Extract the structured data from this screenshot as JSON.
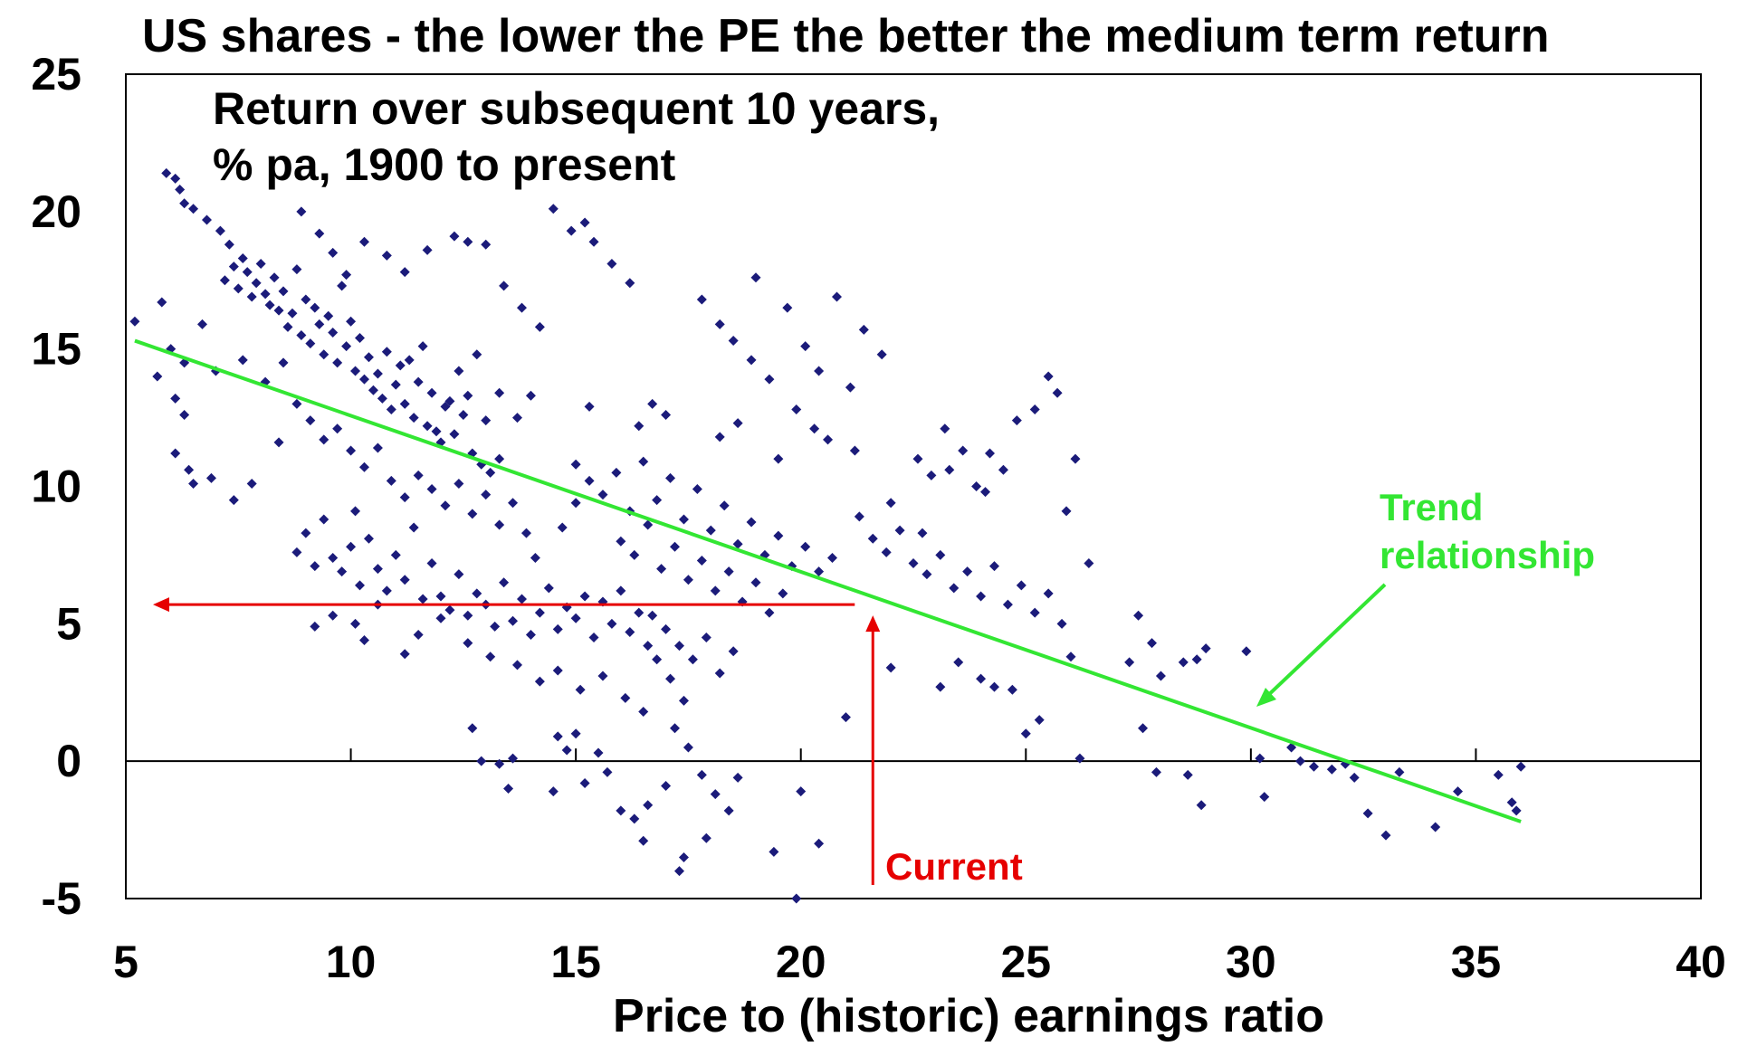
{
  "chart_data": {
    "type": "scatter",
    "title": "US shares  - the lower the PE the better the medium term return",
    "subtitle_lines": [
      "Return over subsequent 10 years,",
      "% pa, 1900 to present"
    ],
    "xlabel": "Price to (historic) earnings ratio",
    "ylabel": "",
    "xlim": [
      5,
      40
    ],
    "ylim": [
      -5,
      25
    ],
    "x_ticks": [
      "5",
      "10",
      "15",
      "20",
      "25",
      "30",
      "35",
      "40"
    ],
    "y_ticks": [
      "25",
      "20",
      "15",
      "10",
      "5",
      "0",
      "-5"
    ],
    "grid": false,
    "colors": {
      "points": "#1b1b7a",
      "trend": "#33e633",
      "current": "#e60000",
      "zero_line": "#000000"
    },
    "trend_line": {
      "label_lines": [
        "Trend",
        "relationship"
      ],
      "x": [
        5.2,
        36
      ],
      "y": [
        15.3,
        -2.2
      ]
    },
    "current": {
      "label": "Current",
      "pe": 21.6,
      "implied_return": 5.7
    },
    "points": [
      [
        5.2,
        16.0
      ],
      [
        5.8,
        16.7
      ],
      [
        5.9,
        21.4
      ],
      [
        6.1,
        21.2
      ],
      [
        6.2,
        20.8
      ],
      [
        6.3,
        20.3
      ],
      [
        6.5,
        20.1
      ],
      [
        6.8,
        19.7
      ],
      [
        7.1,
        19.3
      ],
      [
        7.3,
        18.8
      ],
      [
        6.0,
        15.0
      ],
      [
        6.3,
        14.5
      ],
      [
        6.1,
        11.2
      ],
      [
        6.4,
        10.6
      ],
      [
        6.5,
        10.1
      ],
      [
        6.3,
        12.6
      ],
      [
        6.9,
        10.3
      ],
      [
        7.4,
        9.5
      ],
      [
        7.8,
        10.1
      ],
      [
        6.7,
        15.9
      ],
      [
        7.2,
        17.5
      ],
      [
        7.4,
        18.0
      ],
      [
        7.5,
        17.2
      ],
      [
        7.6,
        18.3
      ],
      [
        7.7,
        17.8
      ],
      [
        7.8,
        16.9
      ],
      [
        7.9,
        17.4
      ],
      [
        8.0,
        18.1
      ],
      [
        8.1,
        17.0
      ],
      [
        8.2,
        16.6
      ],
      [
        8.3,
        17.6
      ],
      [
        8.4,
        16.4
      ],
      [
        8.5,
        17.1
      ],
      [
        8.6,
        15.8
      ],
      [
        8.7,
        16.3
      ],
      [
        8.8,
        17.9
      ],
      [
        8.9,
        15.5
      ],
      [
        9.0,
        16.8
      ],
      [
        9.1,
        15.2
      ],
      [
        9.2,
        16.5
      ],
      [
        9.3,
        15.9
      ],
      [
        9.4,
        14.8
      ],
      [
        9.5,
        16.2
      ],
      [
        9.6,
        15.6
      ],
      [
        9.7,
        14.5
      ],
      [
        9.8,
        17.3
      ],
      [
        9.9,
        15.1
      ],
      [
        10.0,
        16.0
      ],
      [
        10.1,
        14.2
      ],
      [
        10.2,
        15.4
      ],
      [
        10.3,
        13.9
      ],
      [
        10.4,
        14.7
      ],
      [
        10.5,
        13.5
      ],
      [
        10.6,
        14.1
      ],
      [
        10.7,
        13.2
      ],
      [
        10.8,
        14.9
      ],
      [
        10.9,
        12.8
      ],
      [
        11.0,
        13.7
      ],
      [
        11.1,
        14.4
      ],
      [
        11.2,
        13.0
      ],
      [
        11.3,
        14.6
      ],
      [
        11.4,
        12.5
      ],
      [
        11.5,
        13.8
      ],
      [
        11.6,
        15.1
      ],
      [
        11.7,
        12.2
      ],
      [
        11.8,
        13.4
      ],
      [
        11.9,
        12.0
      ],
      [
        12.0,
        11.6
      ],
      [
        12.1,
        12.9
      ],
      [
        12.2,
        13.1
      ],
      [
        12.3,
        11.9
      ],
      [
        12.4,
        14.2
      ],
      [
        12.5,
        12.6
      ],
      [
        12.6,
        13.3
      ],
      [
        12.7,
        11.2
      ],
      [
        12.8,
        14.8
      ],
      [
        12.9,
        10.8
      ],
      [
        13.0,
        12.4
      ],
      [
        13.1,
        10.5
      ],
      [
        13.3,
        11.0
      ],
      [
        8.9,
        20.0
      ],
      [
        9.3,
        19.2
      ],
      [
        9.6,
        18.5
      ],
      [
        9.9,
        17.7
      ],
      [
        10.3,
        18.9
      ],
      [
        10.8,
        18.4
      ],
      [
        11.2,
        17.8
      ],
      [
        11.7,
        18.6
      ],
      [
        12.3,
        19.1
      ],
      [
        12.6,
        18.9
      ],
      [
        13.0,
        18.8
      ],
      [
        13.4,
        17.3
      ],
      [
        13.8,
        16.5
      ],
      [
        14.2,
        15.8
      ],
      [
        14.5,
        20.1
      ],
      [
        14.9,
        19.3
      ],
      [
        15.2,
        19.6
      ],
      [
        15.4,
        18.9
      ],
      [
        15.8,
        18.1
      ],
      [
        16.2,
        17.4
      ],
      [
        8.1,
        13.8
      ],
      [
        8.5,
        14.5
      ],
      [
        8.8,
        13.0
      ],
      [
        9.1,
        12.4
      ],
      [
        9.4,
        11.7
      ],
      [
        9.7,
        12.1
      ],
      [
        10.0,
        11.3
      ],
      [
        10.3,
        10.7
      ],
      [
        10.6,
        11.4
      ],
      [
        10.9,
        10.2
      ],
      [
        11.2,
        9.6
      ],
      [
        11.5,
        10.4
      ],
      [
        11.8,
        9.9
      ],
      [
        12.1,
        9.3
      ],
      [
        12.4,
        10.1
      ],
      [
        12.7,
        9.0
      ],
      [
        13.0,
        9.7
      ],
      [
        13.3,
        8.6
      ],
      [
        13.6,
        9.4
      ],
      [
        13.9,
        8.3
      ],
      [
        8.8,
        7.6
      ],
      [
        9.0,
        8.3
      ],
      [
        9.2,
        7.1
      ],
      [
        9.4,
        8.8
      ],
      [
        9.6,
        7.4
      ],
      [
        9.8,
        6.9
      ],
      [
        10.0,
        7.8
      ],
      [
        10.2,
        6.4
      ],
      [
        10.4,
        8.1
      ],
      [
        10.6,
        7.0
      ],
      [
        10.8,
        6.2
      ],
      [
        11.0,
        7.5
      ],
      [
        11.2,
        6.6
      ],
      [
        11.4,
        8.5
      ],
      [
        11.6,
        5.9
      ],
      [
        11.8,
        7.2
      ],
      [
        12.0,
        6.0
      ],
      [
        12.2,
        5.5
      ],
      [
        12.4,
        6.8
      ],
      [
        12.6,
        5.3
      ],
      [
        12.8,
        6.1
      ],
      [
        13.0,
        5.7
      ],
      [
        13.2,
        4.9
      ],
      [
        13.4,
        6.5
      ],
      [
        13.6,
        5.1
      ],
      [
        13.8,
        5.9
      ],
      [
        14.0,
        4.6
      ],
      [
        14.2,
        5.4
      ],
      [
        14.4,
        6.3
      ],
      [
        14.6,
        4.8
      ],
      [
        14.8,
        5.6
      ],
      [
        15.0,
        5.2
      ],
      [
        15.2,
        6.0
      ],
      [
        15.4,
        4.5
      ],
      [
        15.6,
        5.8
      ],
      [
        15.8,
        5.0
      ],
      [
        16.0,
        6.2
      ],
      [
        16.2,
        4.7
      ],
      [
        16.4,
        5.4
      ],
      [
        16.6,
        4.2
      ],
      [
        9.2,
        4.9
      ],
      [
        9.6,
        5.3
      ],
      [
        10.1,
        5.0
      ],
      [
        10.3,
        4.4
      ],
      [
        10.6,
        5.7
      ],
      [
        11.2,
        3.9
      ],
      [
        11.5,
        4.6
      ],
      [
        12.0,
        5.2
      ],
      [
        12.6,
        4.3
      ],
      [
        13.1,
        3.8
      ],
      [
        13.7,
        3.5
      ],
      [
        14.2,
        2.9
      ],
      [
        14.6,
        3.3
      ],
      [
        15.1,
        2.6
      ],
      [
        15.6,
        3.1
      ],
      [
        16.1,
        2.3
      ],
      [
        16.5,
        1.8
      ],
      [
        16.8,
        3.7
      ],
      [
        17.1,
        3.0
      ],
      [
        17.4,
        2.2
      ],
      [
        15.0,
        10.8
      ],
      [
        15.3,
        10.2
      ],
      [
        15.6,
        9.7
      ],
      [
        15.9,
        10.5
      ],
      [
        16.2,
        9.1
      ],
      [
        16.5,
        10.9
      ],
      [
        16.8,
        9.5
      ],
      [
        17.1,
        10.3
      ],
      [
        17.4,
        8.8
      ],
      [
        17.7,
        9.9
      ],
      [
        18.0,
        8.4
      ],
      [
        18.3,
        9.3
      ],
      [
        18.6,
        7.9
      ],
      [
        18.9,
        8.7
      ],
      [
        19.2,
        7.5
      ],
      [
        19.5,
        8.2
      ],
      [
        19.8,
        7.1
      ],
      [
        20.1,
        7.8
      ],
      [
        20.4,
        6.9
      ],
      [
        20.7,
        7.4
      ],
      [
        16.0,
        8.0
      ],
      [
        16.3,
        7.5
      ],
      [
        16.6,
        8.6
      ],
      [
        16.9,
        7.0
      ],
      [
        17.2,
        7.8
      ],
      [
        17.5,
        6.6
      ],
      [
        17.8,
        7.3
      ],
      [
        18.1,
        6.2
      ],
      [
        18.4,
        6.9
      ],
      [
        18.7,
        5.8
      ],
      [
        19.0,
        6.5
      ],
      [
        19.3,
        5.4
      ],
      [
        19.6,
        6.1
      ],
      [
        17.3,
        4.2
      ],
      [
        17.6,
        3.7
      ],
      [
        17.9,
        4.5
      ],
      [
        18.2,
        3.2
      ],
      [
        17.0,
        4.8
      ],
      [
        16.7,
        5.3
      ],
      [
        18.5,
        4.0
      ],
      [
        17.2,
        1.2
      ],
      [
        17.5,
        0.5
      ],
      [
        17.8,
        -0.5
      ],
      [
        18.1,
        -1.2
      ],
      [
        18.4,
        -1.8
      ],
      [
        17.0,
        -0.9
      ],
      [
        16.6,
        -1.6
      ],
      [
        16.3,
        -2.1
      ],
      [
        16.0,
        -1.8
      ],
      [
        15.7,
        -0.4
      ],
      [
        15.5,
        0.3
      ],
      [
        15.2,
        -0.8
      ],
      [
        15.0,
        1.0
      ],
      [
        14.8,
        0.4
      ],
      [
        18.6,
        -0.6
      ],
      [
        17.4,
        -3.5
      ],
      [
        17.9,
        -2.8
      ],
      [
        17.3,
        -4.0
      ],
      [
        16.5,
        -2.9
      ],
      [
        19.9,
        -5.0
      ],
      [
        20.0,
        -1.1
      ],
      [
        20.4,
        -3.0
      ],
      [
        19.4,
        -3.3
      ],
      [
        14.5,
        -1.1
      ],
      [
        13.5,
        -1.0
      ],
      [
        13.3,
        -0.1
      ],
      [
        12.9,
        0.0
      ],
      [
        13.6,
        0.1
      ],
      [
        14.6,
        0.9
      ],
      [
        12.7,
        1.2
      ],
      [
        21.0,
        1.6
      ],
      [
        22.0,
        3.4
      ],
      [
        23.1,
        2.7
      ],
      [
        23.5,
        3.6
      ],
      [
        24.0,
        3.0
      ],
      [
        24.3,
        2.7
      ],
      [
        24.7,
        2.6
      ],
      [
        25.0,
        1.0
      ],
      [
        25.3,
        1.5
      ],
      [
        26.2,
        0.1
      ],
      [
        17.8,
        16.8
      ],
      [
        18.2,
        15.9
      ],
      [
        18.5,
        15.3
      ],
      [
        18.9,
        14.6
      ],
      [
        19.3,
        13.9
      ],
      [
        19.7,
        16.5
      ],
      [
        20.1,
        15.1
      ],
      [
        20.4,
        14.2
      ],
      [
        20.8,
        16.9
      ],
      [
        21.1,
        13.6
      ],
      [
        21.4,
        15.7
      ],
      [
        21.8,
        14.8
      ],
      [
        19.0,
        17.6
      ],
      [
        18.6,
        12.3
      ],
      [
        19.9,
        12.8
      ],
      [
        20.6,
        11.7
      ],
      [
        21.2,
        11.3
      ],
      [
        20.3,
        12.1
      ],
      [
        19.5,
        11.0
      ],
      [
        18.2,
        11.8
      ],
      [
        21.3,
        8.9
      ],
      [
        21.6,
        8.1
      ],
      [
        21.9,
        7.6
      ],
      [
        22.2,
        8.4
      ],
      [
        22.5,
        7.2
      ],
      [
        22.8,
        6.8
      ],
      [
        23.1,
        7.5
      ],
      [
        23.4,
        6.3
      ],
      [
        23.7,
        6.9
      ],
      [
        24.0,
        6.0
      ],
      [
        24.3,
        7.1
      ],
      [
        24.6,
        5.7
      ],
      [
        24.9,
        6.4
      ],
      [
        25.2,
        5.4
      ],
      [
        25.5,
        6.1
      ],
      [
        22.0,
        9.4
      ],
      [
        22.7,
        8.3
      ],
      [
        23.3,
        10.6
      ],
      [
        23.6,
        11.3
      ],
      [
        24.1,
        9.8
      ],
      [
        22.6,
        11.0
      ],
      [
        22.9,
        10.4
      ],
      [
        23.2,
        12.1
      ],
      [
        23.9,
        10.0
      ],
      [
        24.2,
        11.2
      ],
      [
        24.5,
        10.6
      ],
      [
        25.2,
        12.8
      ],
      [
        25.7,
        13.4
      ],
      [
        25.5,
        14.0
      ],
      [
        26.1,
        11.0
      ],
      [
        24.8,
        12.4
      ],
      [
        25.9,
        9.1
      ],
      [
        26.4,
        7.2
      ],
      [
        26.0,
        3.8
      ],
      [
        25.8,
        5.0
      ],
      [
        27.5,
        5.3
      ],
      [
        27.8,
        4.3
      ],
      [
        27.3,
        3.6
      ],
      [
        28.0,
        3.1
      ],
      [
        27.6,
        1.2
      ],
      [
        28.5,
        3.6
      ],
      [
        29.0,
        4.1
      ],
      [
        28.8,
        3.7
      ],
      [
        29.9,
        4.0
      ],
      [
        27.9,
        -0.4
      ],
      [
        28.6,
        -0.5
      ],
      [
        28.9,
        -1.6
      ],
      [
        30.2,
        0.1
      ],
      [
        30.3,
        -1.3
      ],
      [
        30.9,
        0.5
      ],
      [
        31.1,
        0.0
      ],
      [
        31.4,
        -0.2
      ],
      [
        31.8,
        -0.3
      ],
      [
        32.1,
        -0.1
      ],
      [
        32.3,
        -0.6
      ],
      [
        32.6,
        -1.9
      ],
      [
        33.0,
        -2.7
      ],
      [
        33.3,
        -0.4
      ],
      [
        34.1,
        -2.4
      ],
      [
        34.6,
        -1.1
      ],
      [
        35.5,
        -0.5
      ],
      [
        35.8,
        -1.5
      ],
      [
        35.9,
        -1.8
      ],
      [
        36.0,
        -0.2
      ],
      [
        5.7,
        14.0
      ],
      [
        6.1,
        13.2
      ],
      [
        7.0,
        14.2
      ],
      [
        7.6,
        14.6
      ],
      [
        8.4,
        11.6
      ],
      [
        10.1,
        9.1
      ],
      [
        14.1,
        7.4
      ],
      [
        14.7,
        8.5
      ],
      [
        15.0,
        9.4
      ],
      [
        13.3,
        13.4
      ],
      [
        13.7,
        12.5
      ],
      [
        14.0,
        13.3
      ],
      [
        15.3,
        12.9
      ],
      [
        16.7,
        13.0
      ],
      [
        16.4,
        12.2
      ],
      [
        17.0,
        12.6
      ]
    ]
  }
}
